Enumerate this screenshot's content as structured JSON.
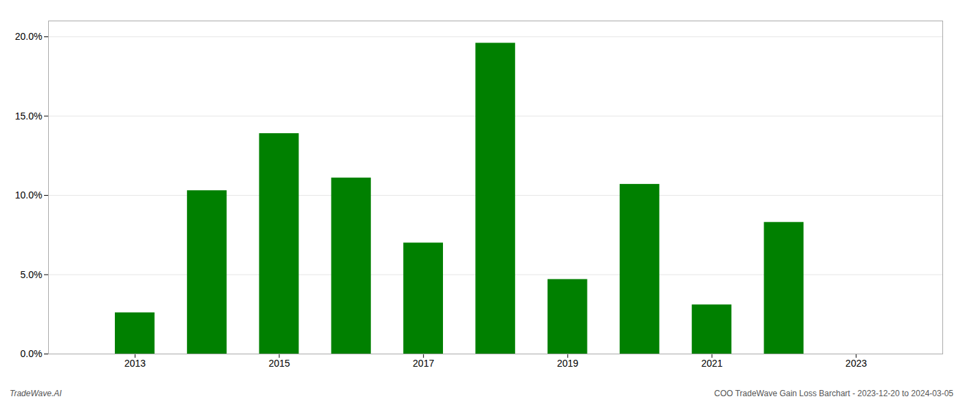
{
  "chart_data": {
    "type": "bar",
    "x": [
      2013,
      2014,
      2015,
      2016,
      2017,
      2018,
      2019,
      2020,
      2021,
      2022,
      2023
    ],
    "values": [
      0.026,
      0.103,
      0.139,
      0.111,
      0.07,
      0.196,
      0.047,
      0.107,
      0.031,
      0.083,
      0.0
    ],
    "color": "#008000",
    "xlim": [
      2011.8,
      2024.2
    ],
    "xticks": [
      2013,
      2015,
      2017,
      2019,
      2021,
      2023
    ],
    "ylim": [
      0,
      0.21
    ],
    "yticks": [
      {
        "value": 0.0,
        "label": "0.0%"
      },
      {
        "value": 0.05,
        "label": "5.0%"
      },
      {
        "value": 0.1,
        "label": "10.0%"
      },
      {
        "value": 0.15,
        "label": "15.0%"
      },
      {
        "value": 0.2,
        "label": "20.0%"
      }
    ],
    "grid": "y",
    "annotations": [
      "TradeWave.AI",
      "COO TradeWave Gain Loss Barchart - 2023-12-20 to 2024-03-05"
    ]
  }
}
